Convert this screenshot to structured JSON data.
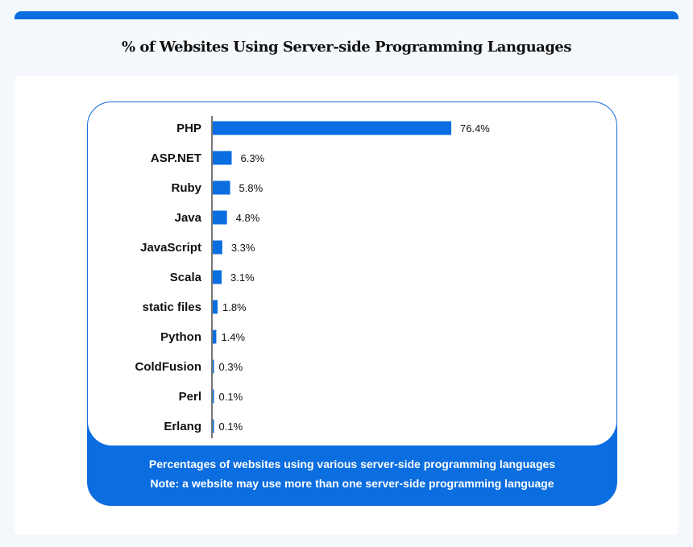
{
  "chart_data": {
    "type": "bar",
    "orientation": "horizontal",
    "title": "% of Websites Using Server-side Programming Languages",
    "categories": [
      "PHP",
      "ASP.NET",
      "Ruby",
      "Java",
      "JavaScript",
      "Scala",
      "static files",
      "Python",
      "ColdFusion",
      "Perl",
      "Erlang"
    ],
    "values": [
      76.4,
      6.3,
      5.8,
      4.8,
      3.3,
      3.1,
      1.8,
      1.4,
      0.3,
      0.1,
      0.1
    ],
    "value_labels": [
      "76.4%",
      "6.3%",
      "5.8%",
      "4.8%",
      "3.3%",
      "3.1%",
      "1.8%",
      "1.4%",
      "0.3%",
      "0.1%",
      "0.1%"
    ],
    "xlim": [
      0,
      100
    ],
    "grid": false,
    "bar_color": "#0a6de0",
    "footnotes": [
      "Percentages of websites using various server-side programming languages",
      "Note: a website may use more than one server-side programming language"
    ]
  }
}
